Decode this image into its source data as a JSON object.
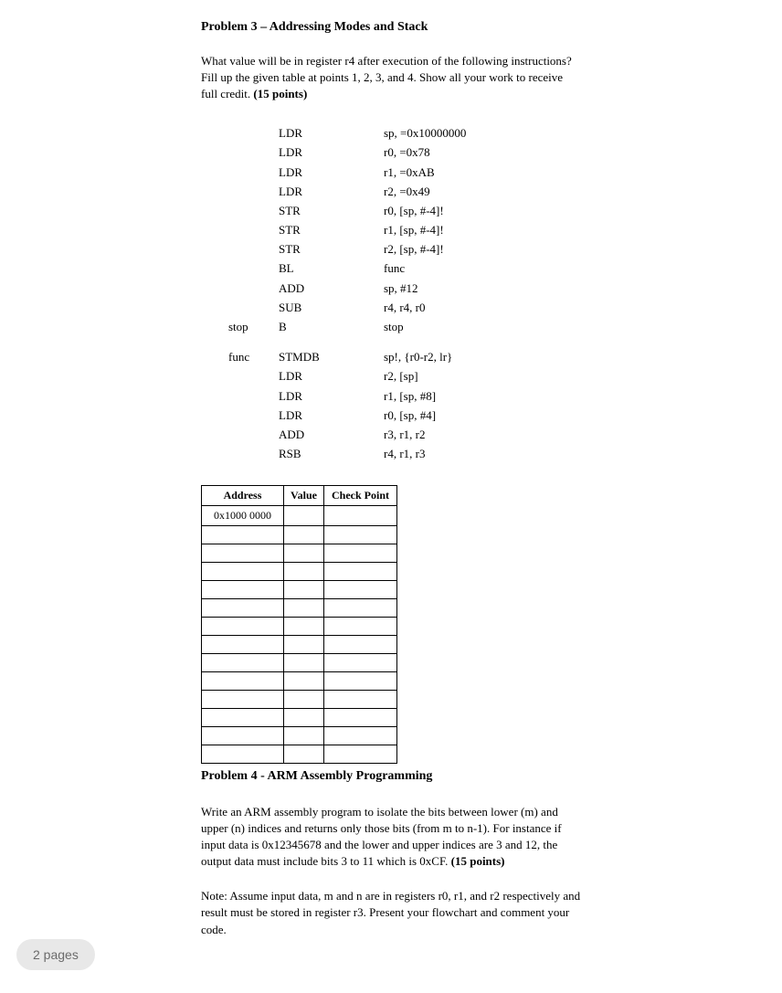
{
  "problem3": {
    "title": "Problem 3 – Addressing Modes and Stack",
    "desc_part1": "What value will be in register r4 after execution of the following instructions? Fill up the given table at points 1, 2, 3, and 4. Show all your work to receive full credit. ",
    "desc_points": "(15 points)",
    "code": [
      {
        "label": "",
        "instr": "LDR",
        "oper": "sp, =0x10000000"
      },
      {
        "label": "",
        "instr": "LDR",
        "oper": "r0, =0x78"
      },
      {
        "label": "",
        "instr": "LDR",
        "oper": "r1, =0xAB"
      },
      {
        "label": "",
        "instr": "LDR",
        "oper": "r2, =0x49"
      },
      {
        "label": "",
        "instr": "STR",
        "oper": "r0, [sp, #-4]!"
      },
      {
        "label": "",
        "instr": "STR",
        "oper": "r1, [sp, #-4]!"
      },
      {
        "label": "",
        "instr": "STR",
        "oper": "r2, [sp, #-4]!"
      },
      {
        "label": "",
        "instr": "BL",
        "oper": "func"
      },
      {
        "label": "",
        "instr": "ADD",
        "oper": "sp, #12"
      },
      {
        "label": "",
        "instr": "SUB",
        "oper": "r4, r4, r0"
      },
      {
        "label": "stop",
        "instr": "B",
        "oper": "stop"
      }
    ],
    "code2": [
      {
        "label": "func",
        "instr": "STMDB",
        "oper": "sp!, {r0-r2, lr}"
      },
      {
        "label": "",
        "instr": "LDR",
        "oper": "r2, [sp]"
      },
      {
        "label": "",
        "instr": "LDR",
        "oper": "r1, [sp, #8]"
      },
      {
        "label": "",
        "instr": "LDR",
        "oper": "r0, [sp, #4]"
      },
      {
        "label": "",
        "instr": "ADD",
        "oper": "r3, r1, r2"
      },
      {
        "label": "",
        "instr": "RSB",
        "oper": "r4, r1, r3"
      }
    ],
    "table": {
      "headers": [
        "Address",
        "Value",
        "Check Point"
      ],
      "first_addr": "0x1000 0000",
      "row_count": 14
    }
  },
  "problem4": {
    "title": "Problem 4 - ARM Assembly Programming",
    "desc_part1": "Write an ARM assembly program to isolate the bits between lower (m) and upper (n) indices and returns only those bits (from m to n-1).  For instance if input data is 0x12345678 and the lower and upper indices are 3 and 12, the output data must include bits 3 to 11 which is 0xCF. ",
    "desc_points": "(15 points)",
    "note": "Note: Assume input data, m and n are in registers r0, r1, and r2 respectively and result must be stored in register r3. Present your flowchart and comment your code."
  },
  "badge": "2 pages"
}
